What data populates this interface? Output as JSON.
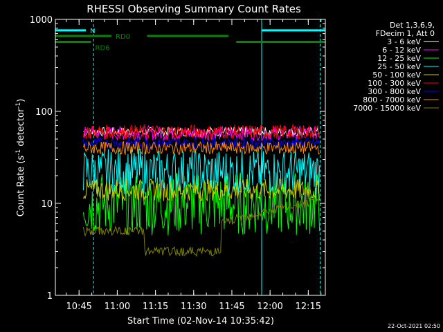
{
  "chart_data": {
    "type": "line",
    "title": "RHESSI Observing Summary Count Rates",
    "xlabel": "Start Time (02-Nov-14 10:35:42)",
    "ylabel_main": "Count Rate (s",
    "ylabel_mid": " detector",
    "ylabel_end": ")",
    "ylabel_sup": "-1",
    "yscale": "log",
    "ylim": [
      1,
      1000
    ],
    "xlim_minutes": [
      0,
      106
    ],
    "x_tick_labels": [
      "10:45",
      "11:00",
      "11:15",
      "11:30",
      "11:45",
      "12:00",
      "12:15"
    ],
    "x_ticks_minutes": [
      9.3,
      24.3,
      39.3,
      54.3,
      69.3,
      84.3,
      99.3
    ],
    "y_tick_labels": [
      "1",
      "10",
      "100",
      "1000"
    ],
    "y_ticks": [
      1,
      10,
      100,
      1000
    ],
    "legend_header": [
      "Det 1,3,6,9,",
      "FDecim 1, Att 0"
    ],
    "series": [
      {
        "name": "3 - 6 keV",
        "color": "#ffffff",
        "base": 60,
        "noise": 0.05
      },
      {
        "name": "6 - 12 keV",
        "color": "#ff00ff",
        "base": 58,
        "noise": 0.08
      },
      {
        "name": "12 - 25 keV",
        "color": "#00ff00",
        "base": 10,
        "noise": 0.35
      },
      {
        "name": "25 - 50 keV",
        "color": "#00ffff",
        "base": 22,
        "noise": 0.25
      },
      {
        "name": "50 - 100 keV",
        "color": "#cccc00",
        "base": 14,
        "noise": 0.12
      },
      {
        "name": "100 - 300 keV",
        "color": "#ff0000",
        "base": 60,
        "noise": 0.08
      },
      {
        "name": "300 - 800 keV",
        "color": "#0000ff",
        "base": 45,
        "noise": 0.06
      },
      {
        "name": "800 - 7000 keV",
        "color": "#ff8800",
        "base": 40,
        "noise": 0.07
      },
      {
        "name": "7000 - 15000 keV",
        "color": "#808000",
        "base": 3.5,
        "noise": 0.25
      }
    ],
    "flag_bars": [
      {
        "label": "N",
        "color": "#00ffff",
        "segments": [
          [
            0,
            12
          ],
          [
            81,
            106
          ]
        ],
        "y": 760
      },
      {
        "label": "RD0",
        "color": "#008800",
        "segments": [
          [
            0,
            22
          ],
          [
            36,
            68
          ]
        ],
        "y": 660
      },
      {
        "label": "RD6",
        "color": "#008800",
        "segments": [
          [
            0,
            14
          ],
          [
            71,
            106
          ]
        ],
        "y": 570
      }
    ],
    "night_marks_minutes": [
      0,
      15,
      81,
      104
    ],
    "timestamp": "22-Oct-2021 02:50"
  }
}
